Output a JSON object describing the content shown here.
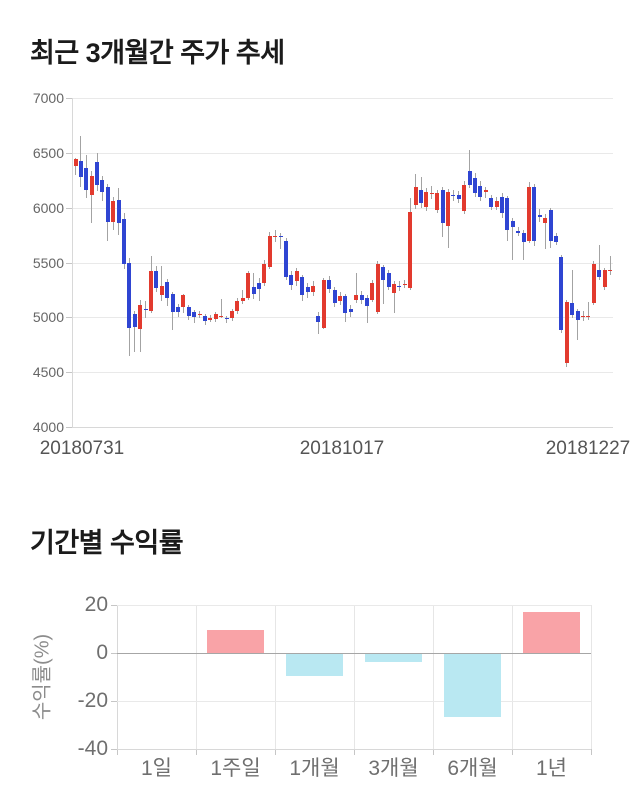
{
  "chart_data": [
    {
      "type": "candlestick",
      "title": "최근 3개월간 주가 추세",
      "ylim": [
        4000,
        7000
      ],
      "y_ticks": [
        7000,
        6500,
        6000,
        5500,
        5000,
        4500,
        4000
      ],
      "x_tick_labels": [
        "20180731",
        "20181017",
        "20181227"
      ],
      "grid": "horizontal",
      "colors": {
        "up": "#e23a2e",
        "down": "#2f45d2",
        "wick": "#a3a3a3"
      },
      "candles": [
        [
          6380,
          6450,
          6300,
          6440
        ],
        [
          6430,
          6650,
          6190,
          6280
        ],
        [
          6360,
          6480,
          6090,
          6160
        ],
        [
          6120,
          6330,
          5860,
          6290
        ],
        [
          6420,
          6500,
          6150,
          6210
        ],
        [
          6250,
          6290,
          6060,
          6140
        ],
        [
          6190,
          6220,
          5700,
          5870
        ],
        [
          5870,
          6100,
          5800,
          6060
        ],
        [
          6070,
          6180,
          5750,
          5860
        ],
        [
          5900,
          5950,
          5440,
          5490
        ],
        [
          5500,
          5540,
          4650,
          4900
        ],
        [
          5030,
          5060,
          4680,
          4910
        ],
        [
          4890,
          5160,
          4680,
          5110
        ],
        [
          5080,
          5150,
          4990,
          5070
        ],
        [
          5060,
          5560,
          5040,
          5420
        ],
        [
          5420,
          5470,
          5230,
          5270
        ],
        [
          5200,
          5470,
          5150,
          5290
        ],
        [
          5320,
          5350,
          5100,
          5180
        ],
        [
          5210,
          5230,
          4880,
          5050
        ],
        [
          5090,
          5120,
          5000,
          5050
        ],
        [
          5090,
          5210,
          5040,
          5200
        ],
        [
          5090,
          5110,
          4980,
          5010
        ],
        [
          5050,
          5070,
          4950,
          5000
        ],
        [
          5030,
          5060,
          4990,
          5032
        ],
        [
          5010,
          5030,
          4930,
          4965
        ],
        [
          4990,
          5020,
          4960,
          4992
        ],
        [
          4985,
          5050,
          4960,
          5030
        ],
        [
          5010,
          5170,
          4990,
          5015
        ],
        [
          4995,
          5010,
          4950,
          4985
        ],
        [
          4990,
          5080,
          4970,
          5060
        ],
        [
          5060,
          5180,
          5030,
          5150
        ],
        [
          5150,
          5250,
          5120,
          5180
        ],
        [
          5180,
          5420,
          5160,
          5400
        ],
        [
          5280,
          5400,
          5170,
          5210
        ],
        [
          5310,
          5360,
          5150,
          5260
        ],
        [
          5310,
          5520,
          5290,
          5490
        ],
        [
          5460,
          5780,
          5440,
          5740
        ],
        [
          5740,
          5800,
          5690,
          5745
        ],
        [
          5745,
          5770,
          5620,
          5735
        ],
        [
          5700,
          5720,
          5340,
          5370
        ],
        [
          5385,
          5420,
          5250,
          5295
        ],
        [
          5330,
          5450,
          5290,
          5420
        ],
        [
          5370,
          5390,
          5150,
          5205
        ],
        [
          5280,
          5310,
          5180,
          5230
        ],
        [
          5230,
          5330,
          5190,
          5290
        ],
        [
          5010,
          5050,
          4850,
          4960
        ],
        [
          4905,
          5360,
          4890,
          5340
        ],
        [
          5340,
          5380,
          5220,
          5260
        ],
        [
          5250,
          5280,
          5090,
          5130
        ],
        [
          5150,
          5230,
          5110,
          5190
        ],
        [
          5190,
          5210,
          4960,
          5040
        ],
        [
          5080,
          5110,
          5000,
          5045
        ],
        [
          5160,
          5400,
          5130,
          5200
        ],
        [
          5200,
          5240,
          5120,
          5160
        ],
        [
          5180,
          5200,
          4945,
          5100
        ],
        [
          5160,
          5340,
          5140,
          5310
        ],
        [
          5050,
          5510,
          5030,
          5490
        ],
        [
          5460,
          5480,
          5120,
          5340
        ],
        [
          5400,
          5430,
          5250,
          5280
        ],
        [
          5220,
          5330,
          5040,
          5300
        ],
        [
          5290,
          5330,
          5240,
          5285
        ],
        [
          5300,
          5340,
          5270,
          5305
        ],
        [
          5270,
          6090,
          5250,
          5965
        ],
        [
          6025,
          6310,
          5990,
          6190
        ],
        [
          6160,
          6280,
          6000,
          6040
        ],
        [
          6010,
          6180,
          5970,
          6145
        ],
        [
          6130,
          6200,
          6080,
          6135
        ],
        [
          5980,
          6160,
          5950,
          6130
        ],
        [
          6160,
          6190,
          5735,
          5860
        ],
        [
          5830,
          6170,
          5630,
          6145
        ],
        [
          6115,
          6160,
          6060,
          6110
        ],
        [
          6120,
          6150,
          6040,
          6080
        ],
        [
          5965,
          6240,
          5940,
          6205
        ],
        [
          6330,
          6530,
          6180,
          6210
        ],
        [
          6270,
          6320,
          6100,
          6135
        ],
        [
          6200,
          6240,
          6060,
          6100
        ],
        [
          6140,
          6190,
          6090,
          6160
        ],
        [
          6085,
          6120,
          5980,
          6010
        ],
        [
          6010,
          6100,
          5980,
          6060
        ],
        [
          6100,
          6130,
          5910,
          5950
        ],
        [
          6085,
          6110,
          5700,
          5800
        ],
        [
          5880,
          5910,
          5520,
          5820
        ],
        [
          5785,
          5820,
          5740,
          5775
        ],
        [
          5770,
          5800,
          5520,
          5690
        ],
        [
          5700,
          6230,
          5680,
          6190
        ],
        [
          6190,
          6220,
          5650,
          5700
        ],
        [
          5935,
          5990,
          5870,
          5915
        ],
        [
          5860,
          5940,
          5620,
          5910
        ],
        [
          5980,
          6000,
          5630,
          5700
        ],
        [
          5740,
          5770,
          5660,
          5690
        ],
        [
          5550,
          5570,
          4860,
          4880
        ],
        [
          4580,
          5160,
          4550,
          5140
        ],
        [
          5130,
          5430,
          4990,
          5020
        ],
        [
          5055,
          5080,
          4790,
          4975
        ],
        [
          5010,
          5060,
          4970,
          5015
        ],
        [
          5010,
          5140,
          4980,
          5012
        ],
        [
          5130,
          5510,
          5110,
          5490
        ],
        [
          5430,
          5660,
          5340,
          5370
        ],
        [
          5280,
          5450,
          5250,
          5430
        ],
        [
          5430,
          5560,
          5390,
          5435
        ]
      ]
    },
    {
      "type": "bar",
      "title": "기간별 수익률",
      "ylabel": "수익률(%)",
      "categories": [
        "1일",
        "1주일",
        "1개월",
        "3개월",
        "6개월",
        "1년"
      ],
      "values": [
        0,
        9.5,
        -9.6,
        -3.8,
        -26.5,
        17.2
      ],
      "ylim": [
        -40,
        20
      ],
      "y_ticks": [
        20,
        0,
        -20,
        -40
      ],
      "grid": "both",
      "legend": "none",
      "colors": {
        "positive": "#f9a3a7",
        "negative": "#b9e8f2"
      }
    }
  ]
}
